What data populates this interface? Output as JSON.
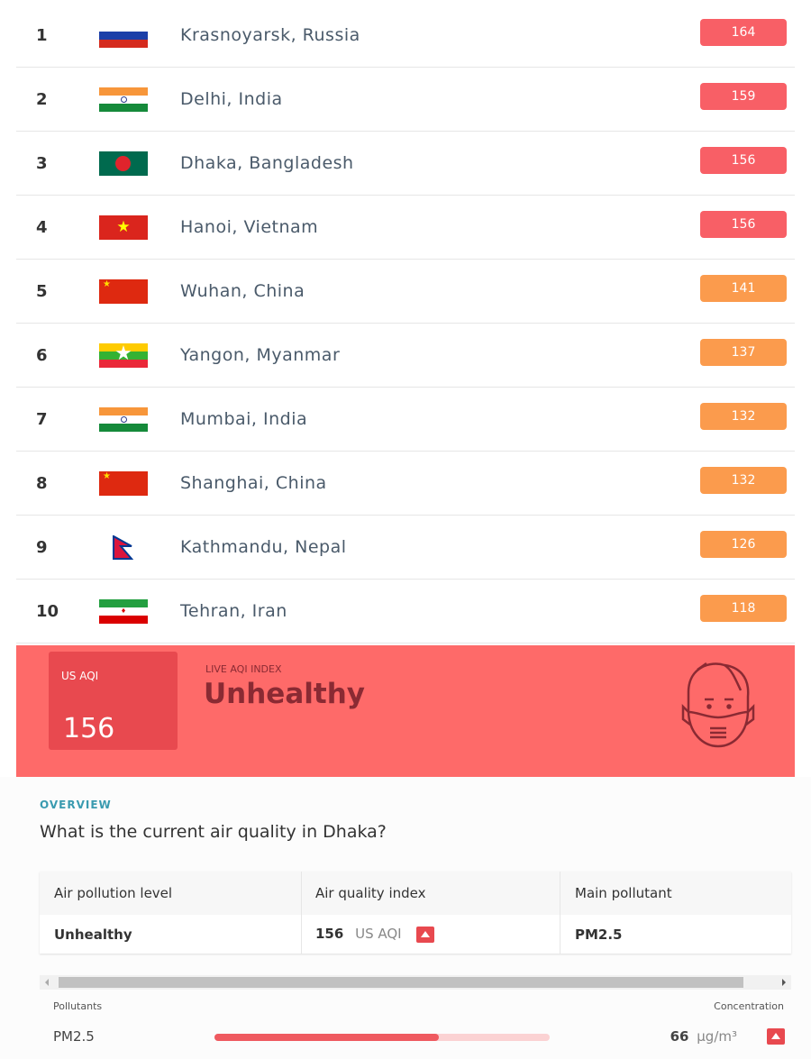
{
  "ranking": [
    {
      "rank": "1",
      "city": "Krasnoyarsk, Russia",
      "flag": "russia",
      "aqi": "164",
      "color": "#f85f66"
    },
    {
      "rank": "2",
      "city": "Delhi, India",
      "flag": "india",
      "aqi": "159",
      "color": "#f85f66"
    },
    {
      "rank": "3",
      "city": "Dhaka, Bangladesh",
      "flag": "bangladesh",
      "aqi": "156",
      "color": "#f85f66"
    },
    {
      "rank": "4",
      "city": "Hanoi, Vietnam",
      "flag": "vietnam",
      "aqi": "156",
      "color": "#f85f66"
    },
    {
      "rank": "5",
      "city": "Wuhan, China",
      "flag": "china",
      "aqi": "141",
      "color": "#fb9b4d"
    },
    {
      "rank": "6",
      "city": "Yangon, Myanmar",
      "flag": "myanmar",
      "aqi": "137",
      "color": "#fb9b4d"
    },
    {
      "rank": "7",
      "city": "Mumbai, India",
      "flag": "india",
      "aqi": "132",
      "color": "#fb9b4d"
    },
    {
      "rank": "8",
      "city": "Shanghai, China",
      "flag": "china",
      "aqi": "132",
      "color": "#fb9b4d"
    },
    {
      "rank": "9",
      "city": "Kathmandu, Nepal",
      "flag": "nepal",
      "aqi": "126",
      "color": "#fb9b4d"
    },
    {
      "rank": "10",
      "city": "Tehran, Iran",
      "flag": "iran",
      "aqi": "118",
      "color": "#fb9b4d"
    }
  ],
  "banner": {
    "aqi_label": "US AQI",
    "aqi_value": "156",
    "live_label": "LIVE AQI INDEX",
    "status": "Unhealthy",
    "icon": "face-mask-icon",
    "color": "#fe6a69"
  },
  "overview": {
    "label": "OVERVIEW",
    "question": "What is the current air quality in Dhaka?",
    "headers": [
      "Air pollution level",
      "Air quality index",
      "Main pollutant"
    ],
    "level": "Unhealthy",
    "aqi": "156",
    "aqi_unit": "US AQI",
    "pollutant": "PM2.5"
  },
  "pollutants": {
    "label": "Pollutants",
    "conc_label": "Concentration",
    "items": [
      {
        "name": "PM2.5",
        "value": "66",
        "unit": "µg/m³",
        "level": 0.67
      }
    ]
  }
}
